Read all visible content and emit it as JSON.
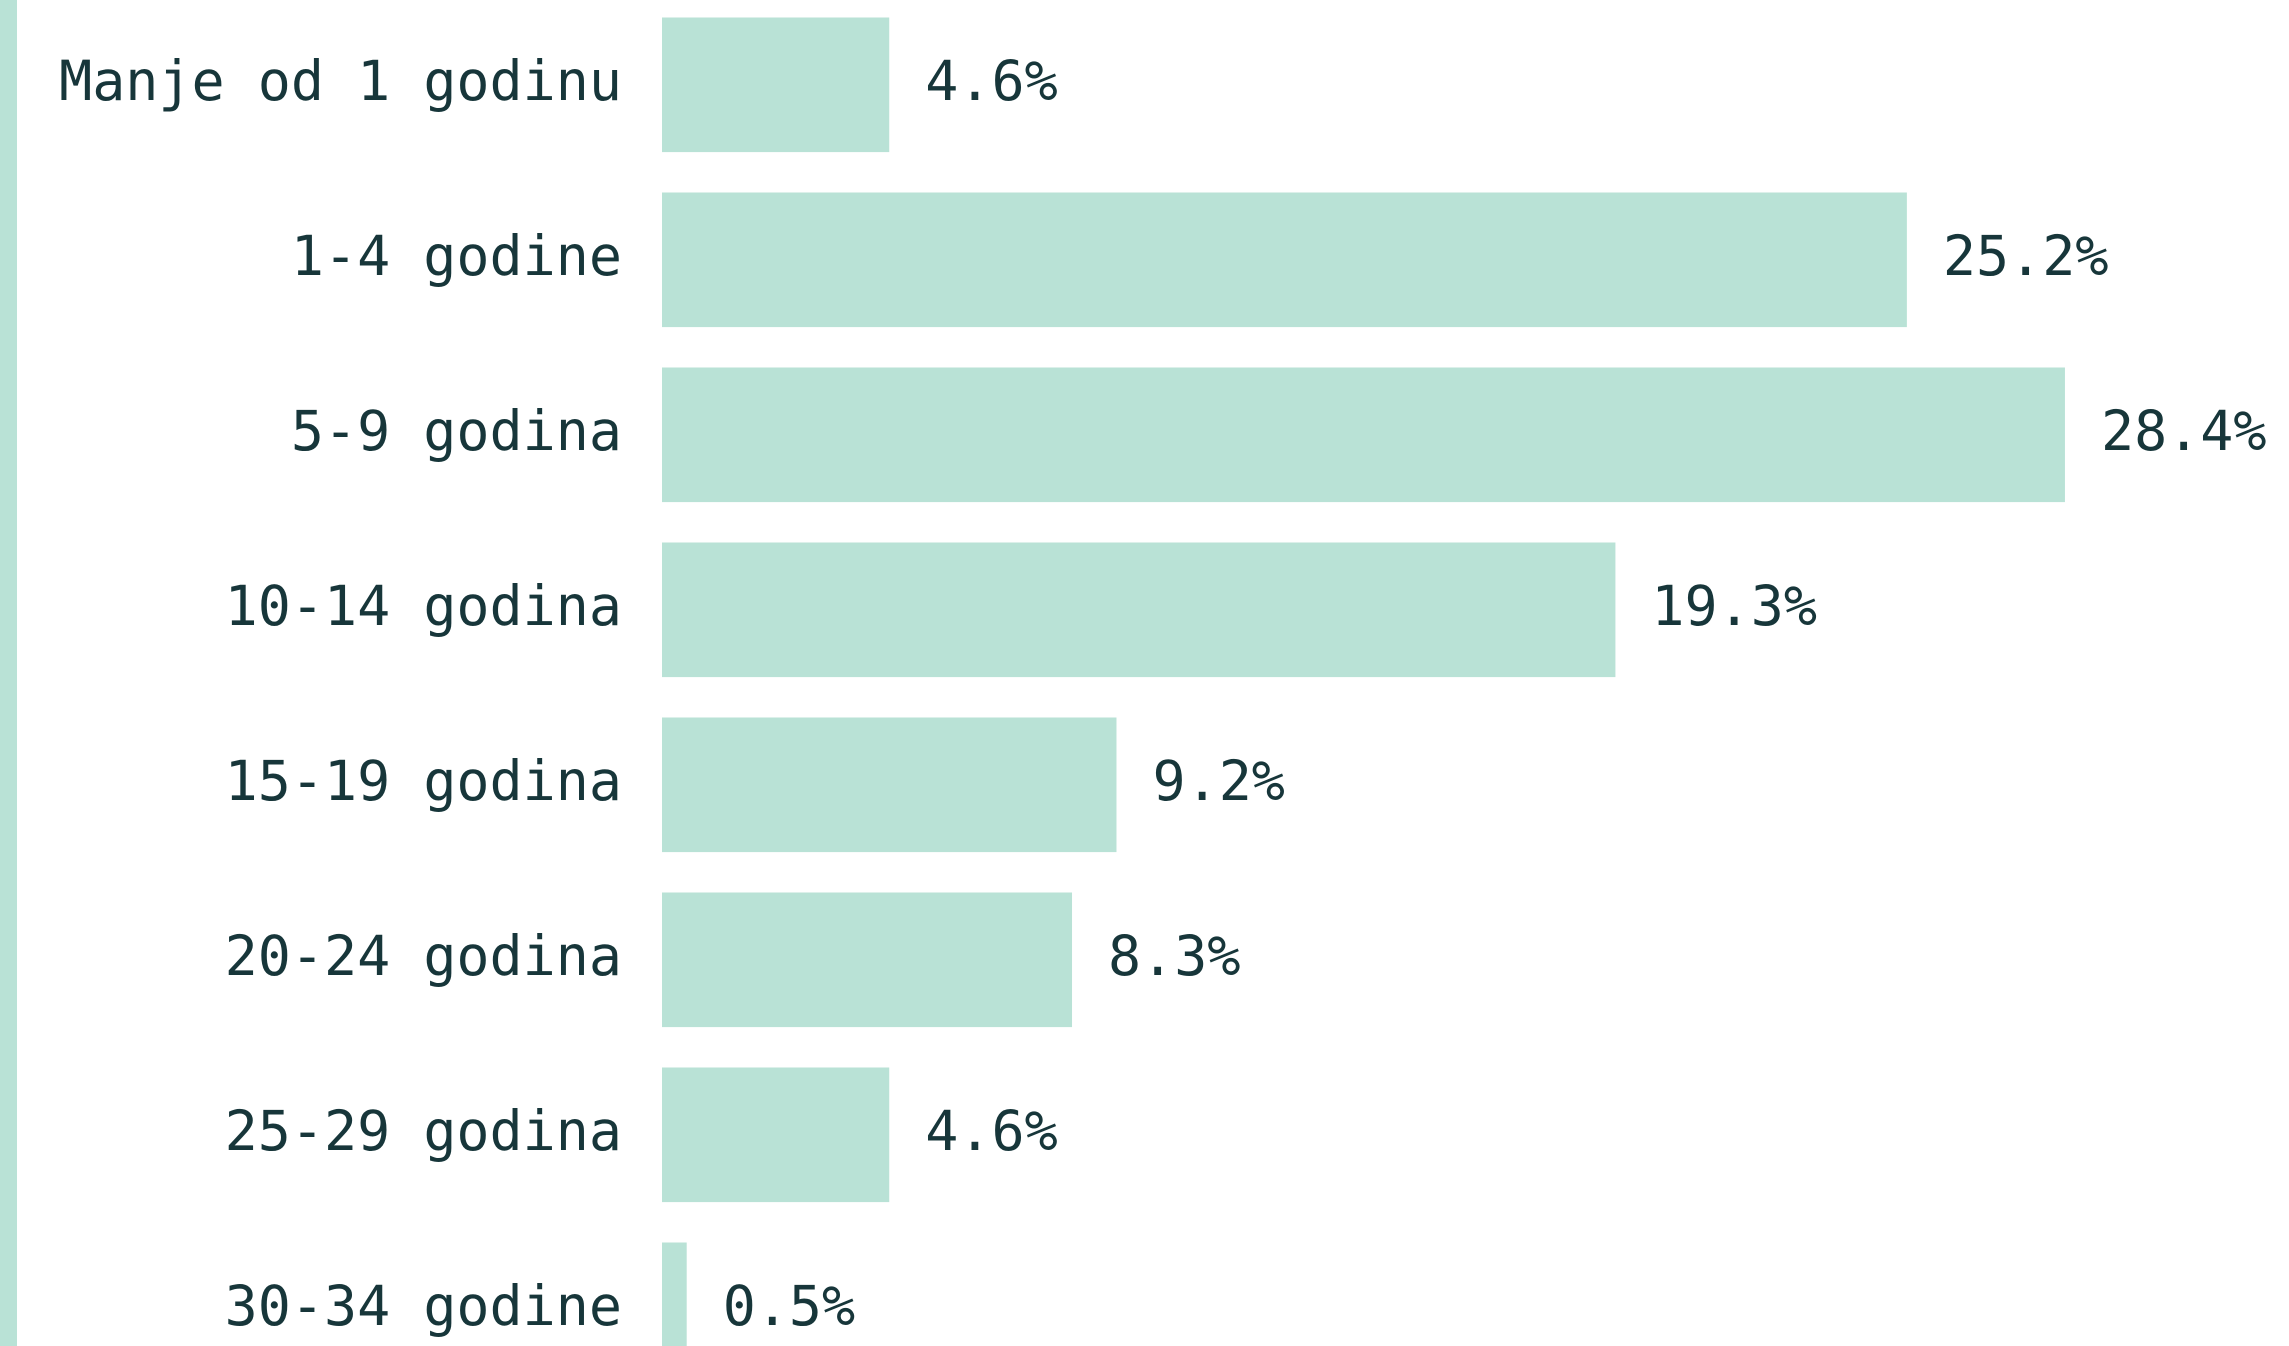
{
  "chart_data": {
    "type": "bar",
    "orientation": "horizontal",
    "categories": [
      "Manje od 1 godinu",
      "1-4 godine",
      "5-9 godina",
      "10-14 godina",
      "15-19 godina",
      "20-24 godina",
      "25-29 godina",
      "30-34 godine"
    ],
    "values": [
      4.6,
      25.2,
      28.4,
      19.3,
      9.2,
      8.3,
      4.6,
      0.5
    ],
    "value_labels": [
      "4.6%",
      "25.2%",
      "28.4%",
      "19.3%",
      "9.2%",
      "8.3%",
      "4.6%",
      "0.5%"
    ],
    "color": "#b9e2d6"
  }
}
